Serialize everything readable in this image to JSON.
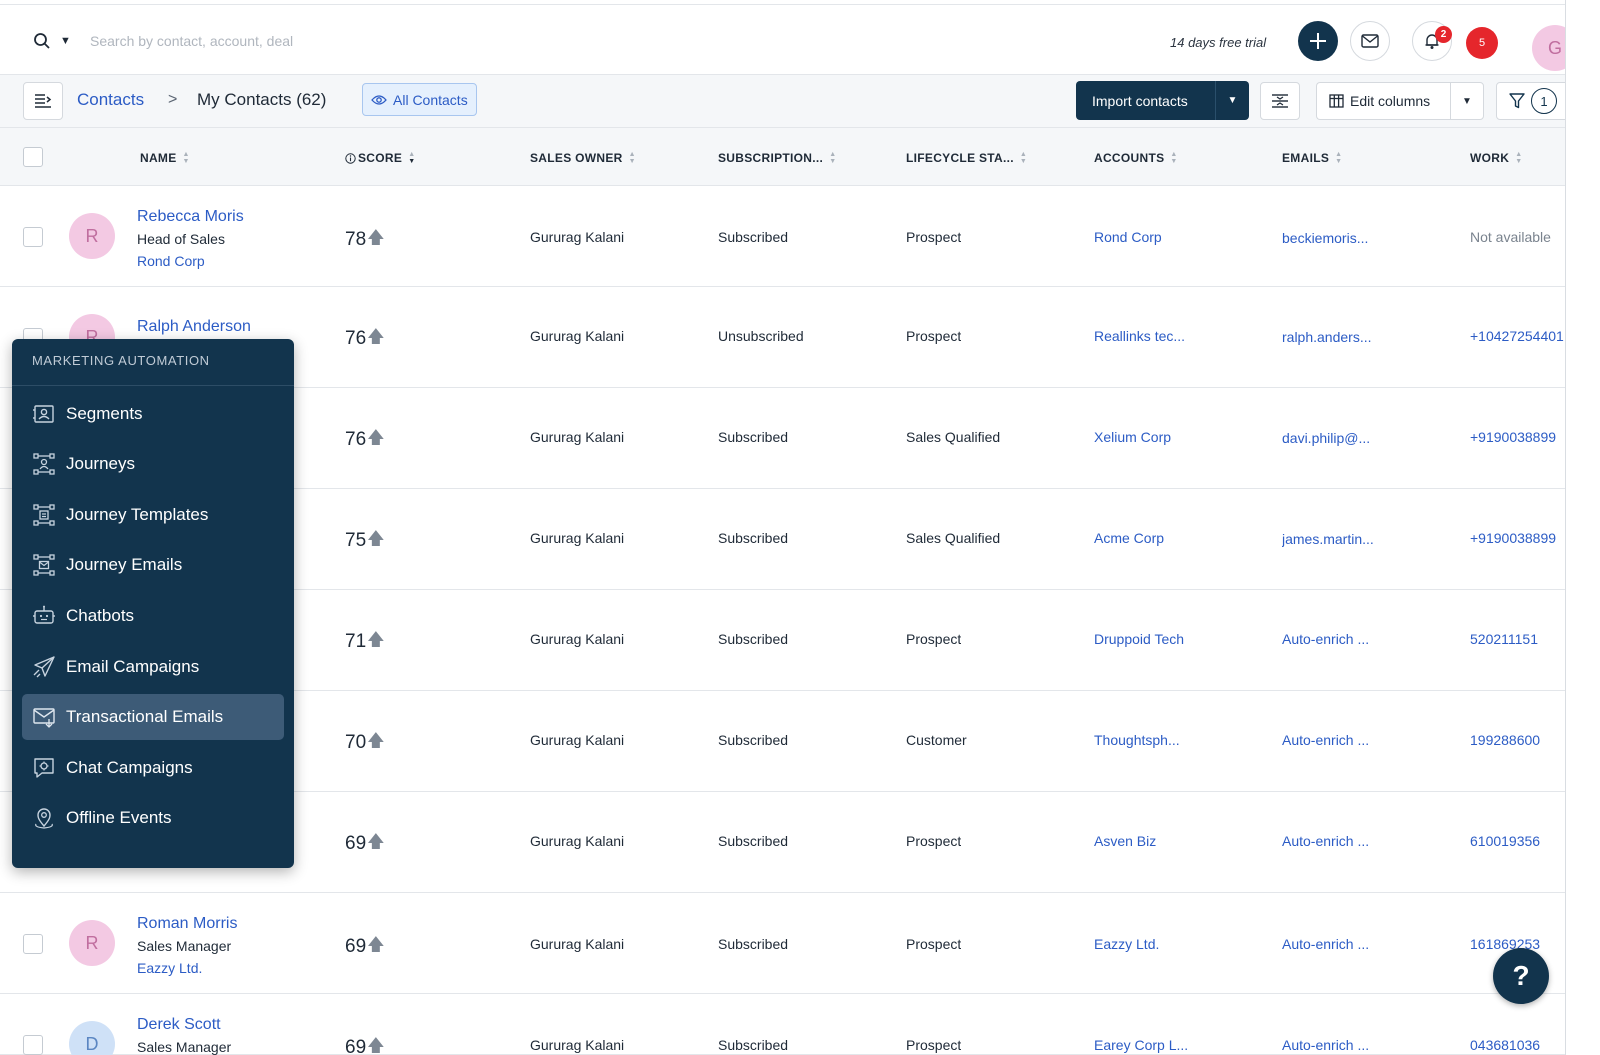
{
  "header": {
    "search_placeholder": "Search by contact, account, deal",
    "trial_text": "14 days free trial",
    "bell_badge": "2",
    "notif_count": "5",
    "user_initial": "G"
  },
  "toolbar": {
    "breadcrumb_root": "Contacts",
    "breadcrumb_sep": ">",
    "breadcrumb_current": "My Contacts (62)",
    "view_label": "All Contacts",
    "import_label": "Import contacts",
    "edit_columns_label": "Edit columns",
    "filter_count": "1"
  },
  "columns": [
    "NAME",
    "SCORE",
    "SALES OWNER",
    "SUBSCRIPTION...",
    "LIFECYCLE STA...",
    "ACCOUNTS",
    "EMAILS",
    "WORK"
  ],
  "rows": [
    {
      "initial": "R",
      "name": "Rebecca Moris",
      "title": "Head of Sales",
      "account_sub": "Rond Corp",
      "score": "78",
      "owner": "Gururag Kalani",
      "subscription": "Subscribed",
      "lifecycle": "Prospect",
      "account": "Rond Corp",
      "email": "beckiemoris...",
      "work": "Not available"
    },
    {
      "initial": "R",
      "name": "Ralph Anderson",
      "title": "",
      "account_sub": "",
      "score": "76",
      "owner": "Gururag Kalani",
      "subscription": "Unsubscribed",
      "lifecycle": "Prospect",
      "account": "Reallinks tec...",
      "email": "ralph.anders...",
      "work": "+10427254401"
    },
    {
      "initial": "",
      "name": "",
      "title": "",
      "account_sub": "",
      "score": "76",
      "owner": "Gururag Kalani",
      "subscription": "Subscribed",
      "lifecycle": "Sales Qualified",
      "account": "Xelium Corp",
      "email": "davi.philip@...",
      "work": "+9190038899"
    },
    {
      "initial": "",
      "name": "",
      "title": "",
      "account_sub": "",
      "score": "75",
      "owner": "Gururag Kalani",
      "subscription": "Subscribed",
      "lifecycle": "Sales Qualified",
      "account": "Acme Corp",
      "email": "james.martin...",
      "work": "+9190038899"
    },
    {
      "initial": "",
      "name": "",
      "title": "",
      "account_sub": "",
      "score": "71",
      "owner": "Gururag Kalani",
      "subscription": "Subscribed",
      "lifecycle": "Prospect",
      "account": "Druppoid Tech",
      "email": "Auto-enrich ...",
      "work": "520211151"
    },
    {
      "initial": "",
      "name": "",
      "title": "",
      "account_sub": "",
      "score": "70",
      "owner": "Gururag Kalani",
      "subscription": "Subscribed",
      "lifecycle": "Customer",
      "account": "Thoughtsph...",
      "email": "Auto-enrich ...",
      "work": "199288600"
    },
    {
      "initial": "",
      "name": "",
      "title": "",
      "account_sub": "",
      "score": "69",
      "owner": "Gururag Kalani",
      "subscription": "Subscribed",
      "lifecycle": "Prospect",
      "account": "Asven Biz",
      "email": "Auto-enrich ...",
      "work": "610019356"
    },
    {
      "initial": "R",
      "name": "Roman Morris",
      "title": "Sales Manager",
      "account_sub": "Eazzy Ltd.",
      "score": "69",
      "owner": "Gururag Kalani",
      "subscription": "Subscribed",
      "lifecycle": "Prospect",
      "account": "Eazzy Ltd.",
      "email": "Auto-enrich ...",
      "work": "161869253"
    },
    {
      "initial": "D",
      "name": "Derek Scott",
      "title": "Sales Manager",
      "account_sub": "",
      "score": "69",
      "owner": "Gururag Kalani",
      "subscription": "Subscribed",
      "lifecycle": "Prospect",
      "account": "Earey Corp L...",
      "email": "Auto-enrich ...",
      "work": "043681036"
    }
  ],
  "menu": {
    "heading": "MARKETING AUTOMATION",
    "items": [
      {
        "label": "Segments",
        "icon": "segments-icon"
      },
      {
        "label": "Journeys",
        "icon": "journeys-icon"
      },
      {
        "label": "Journey Templates",
        "icon": "journey-templates-icon"
      },
      {
        "label": "Journey Emails",
        "icon": "journey-emails-icon"
      },
      {
        "label": "Chatbots",
        "icon": "chatbot-icon"
      },
      {
        "label": "Email Campaigns",
        "icon": "paper-plane-icon"
      },
      {
        "label": "Transactional Emails",
        "icon": "transactional-email-icon"
      },
      {
        "label": "Chat Campaigns",
        "icon": "chat-campaign-icon"
      },
      {
        "label": "Offline Events",
        "icon": "location-pin-icon"
      }
    ],
    "active_index": 6
  },
  "help_label": "?"
}
